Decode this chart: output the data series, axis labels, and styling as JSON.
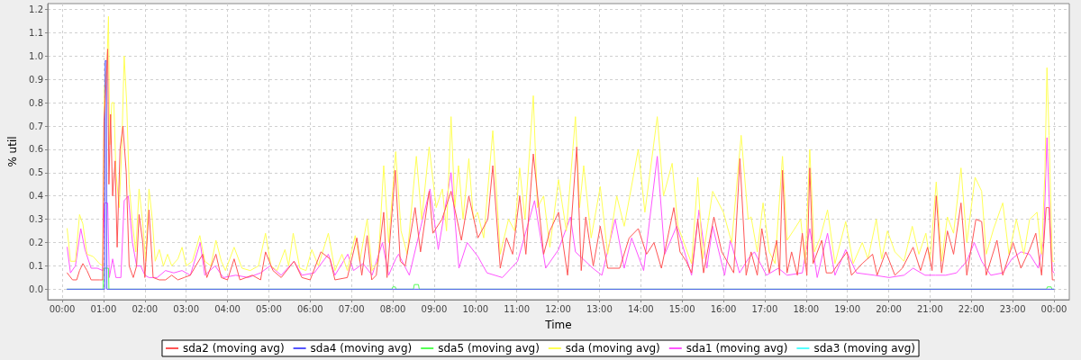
{
  "chart_data": {
    "type": "line",
    "xlabel": "Time",
    "ylabel": "% util",
    "xlim": [
      -0.35,
      24.37
    ],
    "ylim": [
      -0.045,
      1.225
    ],
    "xticks": [
      {
        "value": 0,
        "label": "00:00"
      },
      {
        "value": 1,
        "label": "01:00"
      },
      {
        "value": 2,
        "label": "02:00"
      },
      {
        "value": 3,
        "label": "03:00"
      },
      {
        "value": 4,
        "label": "04:00"
      },
      {
        "value": 5,
        "label": "05:00"
      },
      {
        "value": 6,
        "label": "06:00"
      },
      {
        "value": 7,
        "label": "07:00"
      },
      {
        "value": 8,
        "label": "08:00"
      },
      {
        "value": 9,
        "label": "09:00"
      },
      {
        "value": 10,
        "label": "10:00"
      },
      {
        "value": 11,
        "label": "11:00"
      },
      {
        "value": 12,
        "label": "12:00"
      },
      {
        "value": 13,
        "label": "13:00"
      },
      {
        "value": 14,
        "label": "14:00"
      },
      {
        "value": 15,
        "label": "15:00"
      },
      {
        "value": 16,
        "label": "16:00"
      },
      {
        "value": 17,
        "label": "17:00"
      },
      {
        "value": 18,
        "label": "18:00"
      },
      {
        "value": 19,
        "label": "19:00"
      },
      {
        "value": 20,
        "label": "20:00"
      },
      {
        "value": 21,
        "label": "21:00"
      },
      {
        "value": 22,
        "label": "22:00"
      },
      {
        "value": 23,
        "label": "23:00"
      },
      {
        "value": 24,
        "label": "00:00"
      }
    ],
    "yticks": [
      {
        "value": 0,
        "label": "0.0"
      },
      0.1,
      0.2,
      0.3,
      0.4,
      0.5,
      0.6,
      0.7,
      0.8,
      0.9,
      {
        "value": 1,
        "label": "1.0"
      },
      1.1,
      1.2
    ],
    "grid": true,
    "legend": "bottom",
    "marker": "none",
    "series": [
      {
        "name": "sda2 (moving avg)",
        "color": "#ff5555",
        "x": [
          0.12,
          0.25,
          0.35,
          0.42,
          0.5,
          0.6,
          0.7,
          0.9,
          0.98,
          1.01,
          1.06,
          1.1,
          1.13,
          1.17,
          1.22,
          1.28,
          1.33,
          1.4,
          1.47,
          1.55,
          1.62,
          1.72,
          1.8,
          1.86,
          1.95,
          2.0,
          2.1,
          2.2,
          2.35,
          2.5,
          2.65,
          2.8,
          2.95,
          3.1,
          3.4,
          3.5,
          3.72,
          3.85,
          4.0,
          4.16,
          4.3,
          4.6,
          4.8,
          4.92,
          5.1,
          5.3,
          5.61,
          5.8,
          6.0,
          6.26,
          6.48,
          6.6,
          6.9,
          7.13,
          7.25,
          7.38,
          7.49,
          7.6,
          7.78,
          7.86,
          8.06,
          8.18,
          8.3,
          8.54,
          8.67,
          8.88,
          8.97,
          9.19,
          9.41,
          9.66,
          9.84,
          10.06,
          10.3,
          10.42,
          10.6,
          10.75,
          10.9,
          11.07,
          11.22,
          11.4,
          11.65,
          11.8,
          12.01,
          12.23,
          12.45,
          12.56,
          12.67,
          12.85,
          13.02,
          13.2,
          13.49,
          13.72,
          13.94,
          14.14,
          14.32,
          14.5,
          14.8,
          14.95,
          15.1,
          15.23,
          15.38,
          15.52,
          15.77,
          15.96,
          16.25,
          16.4,
          16.55,
          16.67,
          16.82,
          16.93,
          17.11,
          17.29,
          17.36,
          17.43,
          17.54,
          17.65,
          17.79,
          17.91,
          18.02,
          18.09,
          18.17,
          18.38,
          18.49,
          18.63,
          18.78,
          18.99,
          19.1,
          19.36,
          19.61,
          19.72,
          19.93,
          20.15,
          20.33,
          20.59,
          20.77,
          20.94,
          21.05,
          21.15,
          21.28,
          21.42,
          21.57,
          21.75,
          21.89,
          22.11,
          22.25,
          22.36,
          22.62,
          22.76,
          23.01,
          23.2,
          23.41,
          23.56,
          23.7,
          23.81,
          23.88,
          23.96,
          24.0
        ],
        "values": [
          0.07,
          0.04,
          0.04,
          0.08,
          0.11,
          0.08,
          0.04,
          0.04,
          0.04,
          0.72,
          0.88,
          1.03,
          0.45,
          0.75,
          0.4,
          0.55,
          0.18,
          0.6,
          0.7,
          0.5,
          0.1,
          0.05,
          0.1,
          0.32,
          0.2,
          0.05,
          0.34,
          0.05,
          0.04,
          0.04,
          0.06,
          0.04,
          0.05,
          0.06,
          0.15,
          0.05,
          0.15,
          0.05,
          0.04,
          0.13,
          0.04,
          0.06,
          0.04,
          0.16,
          0.08,
          0.05,
          0.12,
          0.05,
          0.04,
          0.16,
          0.13,
          0.04,
          0.05,
          0.22,
          0.06,
          0.23,
          0.04,
          0.06,
          0.33,
          0.05,
          0.51,
          0.12,
          0.1,
          0.35,
          0.16,
          0.42,
          0.24,
          0.3,
          0.42,
          0.21,
          0.4,
          0.22,
          0.3,
          0.53,
          0.09,
          0.22,
          0.15,
          0.4,
          0.15,
          0.58,
          0.15,
          0.25,
          0.33,
          0.06,
          0.61,
          0.08,
          0.31,
          0.1,
          0.27,
          0.09,
          0.09,
          0.22,
          0.26,
          0.15,
          0.2,
          0.09,
          0.35,
          0.16,
          0.12,
          0.07,
          0.3,
          0.07,
          0.31,
          0.16,
          0.07,
          0.56,
          0.06,
          0.16,
          0.06,
          0.26,
          0.07,
          0.21,
          0.06,
          0.51,
          0.07,
          0.16,
          0.06,
          0.24,
          0.06,
          0.52,
          0.11,
          0.21,
          0.07,
          0.07,
          0.11,
          0.16,
          0.06,
          0.11,
          0.15,
          0.06,
          0.16,
          0.06,
          0.09,
          0.18,
          0.08,
          0.18,
          0.08,
          0.4,
          0.07,
          0.25,
          0.15,
          0.37,
          0.06,
          0.3,
          0.29,
          0.06,
          0.21,
          0.06,
          0.2,
          0.09,
          0.17,
          0.24,
          0.06,
          0.35,
          0.35,
          0.04,
          0.04
        ]
      },
      {
        "name": "sda4 (moving avg)",
        "color": "#5555ff",
        "x": [
          0.12,
          1.03,
          1.04,
          1.07,
          1.08,
          24.0
        ],
        "values": [
          0,
          0,
          0.98,
          0.98,
          0,
          0
        ]
      },
      {
        "name": "sda5 (moving avg)",
        "color": "#55ff55",
        "x": [
          0.12,
          0.99,
          1.0,
          1.12,
          1.13,
          7.98,
          8.0,
          8.06,
          8.08,
          8.5,
          8.52,
          8.62,
          8.64,
          23.82,
          23.84,
          23.93,
          23.95,
          24.0
        ],
        "values": [
          0,
          0,
          0.09,
          0.09,
          0,
          0,
          0.01,
          0.01,
          0,
          0,
          0.02,
          0.02,
          0,
          0,
          0.01,
          0.01,
          0,
          0
        ]
      },
      {
        "name": "sda (moving avg)",
        "color": "#ffff55",
        "x": [
          0.12,
          0.2,
          0.32,
          0.42,
          0.5,
          0.6,
          0.75,
          0.9,
          0.98,
          1.02,
          1.08,
          1.12,
          1.15,
          1.2,
          1.25,
          1.3,
          1.38,
          1.44,
          1.5,
          1.56,
          1.62,
          1.7,
          1.78,
          1.86,
          1.95,
          2.02,
          2.1,
          2.18,
          2.25,
          2.35,
          2.45,
          2.55,
          2.65,
          2.8,
          2.9,
          3.0,
          3.15,
          3.33,
          3.45,
          3.6,
          3.72,
          3.85,
          3.95,
          4.16,
          4.35,
          4.55,
          4.75,
          4.92,
          5.05,
          5.2,
          5.39,
          5.48,
          5.59,
          5.75,
          5.9,
          6.04,
          6.2,
          6.44,
          6.6,
          6.77,
          6.9,
          7.09,
          7.2,
          7.38,
          7.5,
          7.65,
          7.78,
          7.9,
          8.07,
          8.2,
          8.35,
          8.57,
          8.7,
          8.88,
          9.05,
          9.2,
          9.3,
          9.41,
          9.5,
          9.59,
          9.7,
          9.84,
          9.95,
          10.05,
          10.2,
          10.42,
          10.6,
          10.8,
          10.95,
          11.07,
          11.2,
          11.4,
          11.5,
          11.65,
          11.8,
          12.01,
          12.2,
          12.42,
          12.52,
          12.62,
          12.8,
          13.02,
          13.2,
          13.42,
          13.6,
          13.94,
          14.1,
          14.4,
          14.55,
          14.76,
          14.9,
          15.23,
          15.38,
          15.5,
          15.74,
          16.0,
          16.2,
          16.43,
          16.6,
          16.67,
          16.82,
          16.96,
          17.11,
          17.25,
          17.43,
          17.54,
          17.69,
          17.87,
          17.98,
          18.09,
          18.2,
          18.34,
          18.52,
          18.7,
          18.96,
          19.14,
          19.36,
          19.5,
          19.7,
          19.83,
          19.97,
          20.15,
          20.37,
          20.57,
          20.73,
          20.9,
          21.0,
          21.15,
          21.28,
          21.42,
          21.57,
          21.75,
          21.89,
          22.09,
          22.25,
          22.36,
          22.54,
          22.76,
          22.91,
          23.09,
          23.27,
          23.41,
          23.59,
          23.7,
          23.78,
          23.83,
          23.88,
          23.96,
          24.0
        ],
        "values": [
          0.26,
          0.12,
          0.12,
          0.32,
          0.28,
          0.15,
          0.14,
          0.11,
          0.1,
          0.86,
          0.95,
          1.17,
          0.62,
          0.8,
          0.8,
          0.5,
          0.35,
          0.6,
          1.0,
          0.8,
          0.45,
          0.28,
          0.16,
          0.43,
          0.28,
          0.12,
          0.43,
          0.3,
          0.12,
          0.17,
          0.1,
          0.15,
          0.1,
          0.13,
          0.18,
          0.1,
          0.12,
          0.23,
          0.12,
          0.1,
          0.21,
          0.12,
          0.08,
          0.18,
          0.09,
          0.08,
          0.1,
          0.24,
          0.1,
          0.08,
          0.17,
          0.1,
          0.24,
          0.09,
          0.08,
          0.17,
          0.1,
          0.24,
          0.08,
          0.15,
          0.08,
          0.23,
          0.12,
          0.3,
          0.08,
          0.12,
          0.53,
          0.2,
          0.59,
          0.25,
          0.15,
          0.57,
          0.3,
          0.61,
          0.35,
          0.43,
          0.25,
          0.74,
          0.35,
          0.53,
          0.3,
          0.56,
          0.3,
          0.33,
          0.22,
          0.68,
          0.15,
          0.3,
          0.25,
          0.52,
          0.3,
          0.83,
          0.35,
          0.4,
          0.18,
          0.47,
          0.25,
          0.74,
          0.35,
          0.53,
          0.22,
          0.44,
          0.15,
          0.4,
          0.27,
          0.6,
          0.33,
          0.74,
          0.4,
          0.54,
          0.27,
          0.11,
          0.48,
          0.13,
          0.42,
          0.33,
          0.2,
          0.66,
          0.3,
          0.31,
          0.16,
          0.37,
          0.16,
          0.11,
          0.57,
          0.21,
          0.25,
          0.3,
          0.11,
          0.6,
          0.16,
          0.22,
          0.34,
          0.11,
          0.29,
          0.11,
          0.2,
          0.13,
          0.3,
          0.13,
          0.25,
          0.16,
          0.12,
          0.27,
          0.15,
          0.24,
          0.12,
          0.46,
          0.12,
          0.31,
          0.24,
          0.52,
          0.2,
          0.48,
          0.42,
          0.15,
          0.26,
          0.37,
          0.15,
          0.3,
          0.15,
          0.3,
          0.33,
          0.15,
          0.5,
          0.95,
          0.66,
          0.12,
          0.12
        ]
      },
      {
        "name": "sda1 (moving avg)",
        "color": "#ff55ff",
        "x": [
          0.12,
          0.2,
          0.32,
          0.45,
          0.55,
          0.7,
          0.85,
          0.98,
          1.02,
          1.1,
          1.14,
          1.22,
          1.3,
          1.42,
          1.5,
          1.6,
          1.7,
          1.8,
          1.9,
          2.0,
          2.1,
          2.3,
          2.5,
          2.7,
          2.9,
          3.1,
          3.34,
          3.45,
          3.7,
          3.9,
          4.2,
          4.5,
          4.8,
          5.03,
          5.3,
          5.61,
          5.8,
          6.1,
          6.44,
          6.6,
          6.91,
          7.05,
          7.28,
          7.5,
          7.75,
          7.9,
          8.07,
          8.14,
          8.4,
          8.68,
          8.9,
          9.1,
          9.41,
          9.6,
          9.8,
          10.06,
          10.28,
          10.65,
          11.02,
          11.43,
          11.7,
          12.01,
          12.3,
          12.42,
          12.6,
          12.84,
          13.06,
          13.38,
          13.6,
          13.78,
          14.07,
          14.4,
          14.58,
          14.87,
          15.23,
          15.41,
          15.6,
          15.74,
          16.03,
          16.17,
          16.39,
          16.6,
          16.75,
          17.04,
          17.33,
          17.54,
          17.91,
          18.09,
          18.27,
          18.52,
          18.7,
          18.96,
          19.22,
          19.65,
          20.01,
          20.37,
          20.59,
          20.88,
          21.13,
          21.38,
          21.64,
          21.89,
          22.07,
          22.25,
          22.47,
          22.76,
          22.98,
          23.2,
          23.41,
          23.62,
          23.75,
          23.83,
          23.88,
          23.96,
          24.0
        ],
        "values": [
          0.18,
          0.07,
          0.1,
          0.26,
          0.17,
          0.09,
          0.09,
          0.08,
          0.37,
          0.37,
          0.05,
          0.13,
          0.05,
          0.05,
          0.38,
          0.4,
          0.2,
          0.1,
          0.1,
          0.06,
          0.05,
          0.05,
          0.08,
          0.07,
          0.08,
          0.06,
          0.2,
          0.06,
          0.1,
          0.05,
          0.06,
          0.05,
          0.07,
          0.1,
          0.06,
          0.12,
          0.06,
          0.07,
          0.15,
          0.06,
          0.15,
          0.08,
          0.11,
          0.06,
          0.2,
          0.06,
          0.13,
          0.15,
          0.06,
          0.27,
          0.43,
          0.17,
          0.5,
          0.09,
          0.2,
          0.14,
          0.07,
          0.05,
          0.12,
          0.38,
          0.09,
          0.17,
          0.31,
          0.16,
          0.13,
          0.09,
          0.06,
          0.3,
          0.09,
          0.22,
          0.08,
          0.57,
          0.15,
          0.27,
          0.06,
          0.34,
          0.09,
          0.27,
          0.06,
          0.21,
          0.07,
          0.13,
          0.16,
          0.06,
          0.09,
          0.06,
          0.07,
          0.26,
          0.05,
          0.24,
          0.06,
          0.17,
          0.07,
          0.06,
          0.05,
          0.06,
          0.09,
          0.06,
          0.06,
          0.06,
          0.07,
          0.12,
          0.2,
          0.12,
          0.06,
          0.07,
          0.13,
          0.16,
          0.15,
          0.09,
          0.21,
          0.65,
          0.4,
          0.08,
          0.07
        ]
      },
      {
        "name": "sda3 (moving avg)",
        "color": "#55ffff"
      }
    ]
  }
}
